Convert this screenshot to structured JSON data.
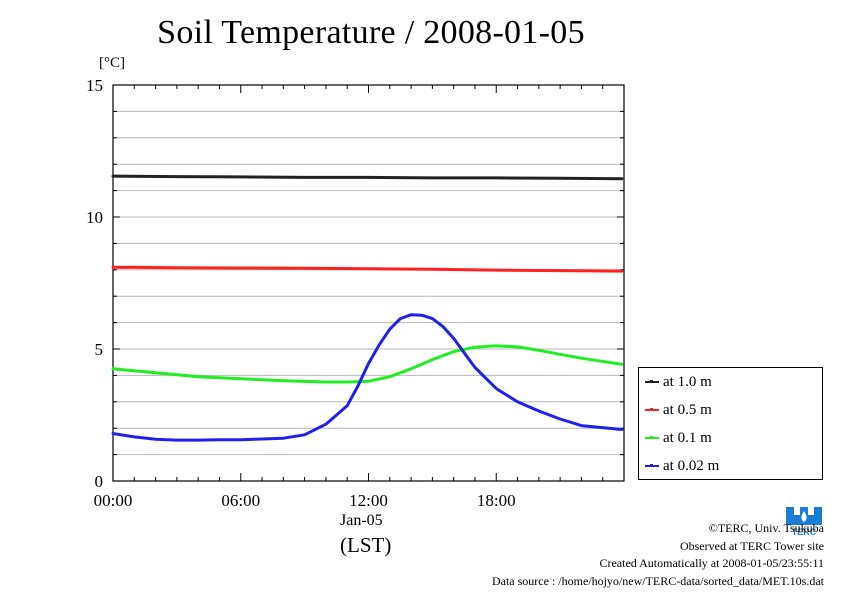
{
  "chart_data": {
    "type": "line",
    "title": "Soil Temperature / 2008-01-05",
    "ylabel": "[°C]",
    "ylim": [
      0,
      15
    ],
    "yticks": [
      0,
      5,
      10,
      15
    ],
    "xlim": [
      0,
      24
    ],
    "xticks": [
      {
        "value": 0,
        "label": "00:00"
      },
      {
        "value": 6,
        "label": "06:00"
      },
      {
        "value": 12,
        "label": "12:00"
      },
      {
        "value": 18,
        "label": "18:00"
      }
    ],
    "date_label": "Jan-05",
    "xlabel": "(LST)",
    "grid": true,
    "legend_position": "right",
    "series": [
      {
        "name": "at 1.0 m",
        "color": "#222222",
        "x": [
          0,
          3,
          6,
          9,
          12,
          15,
          18,
          21,
          23.9
        ],
        "y": [
          11.55,
          11.53,
          11.52,
          11.5,
          11.5,
          11.48,
          11.48,
          11.47,
          11.45
        ]
      },
      {
        "name": "at 0.5 m",
        "color": "#ff2020",
        "x": [
          0,
          3,
          6,
          9,
          12,
          15,
          18,
          21,
          23.9
        ],
        "y": [
          8.1,
          8.08,
          8.07,
          8.06,
          8.04,
          8.02,
          7.99,
          7.97,
          7.95
        ]
      },
      {
        "name": "at 0.1 m",
        "color": "#20ee20",
        "x": [
          0,
          2,
          4,
          6,
          8,
          10,
          11,
          12,
          13,
          14,
          15,
          16,
          17,
          18,
          19,
          20,
          21,
          22,
          23.9
        ],
        "y": [
          4.25,
          4.1,
          3.95,
          3.87,
          3.8,
          3.75,
          3.75,
          3.78,
          3.95,
          4.25,
          4.6,
          4.9,
          5.07,
          5.12,
          5.08,
          4.95,
          4.8,
          4.65,
          4.42
        ]
      },
      {
        "name": "at 0.02 m",
        "color": "#2020ee",
        "x": [
          0,
          1,
          2,
          3,
          4,
          5,
          6,
          7,
          8,
          9,
          10,
          11,
          11.5,
          12,
          12.5,
          13,
          13.5,
          14,
          14.5,
          15,
          15.5,
          16,
          16.5,
          17,
          18,
          19,
          20,
          21,
          22,
          23.9
        ],
        "y": [
          1.8,
          1.67,
          1.58,
          1.55,
          1.55,
          1.56,
          1.56,
          1.59,
          1.62,
          1.75,
          2.15,
          2.85,
          3.6,
          4.45,
          5.15,
          5.75,
          6.15,
          6.3,
          6.28,
          6.15,
          5.85,
          5.4,
          4.85,
          4.3,
          3.5,
          3.0,
          2.65,
          2.35,
          2.1,
          1.95
        ]
      }
    ]
  },
  "credits": {
    "copyright": "©TERC, Univ. Tsukuba",
    "observed": "Observed at TERC Tower site",
    "created": "Created Automatically at 2008-01-05/23:55:11",
    "source": "Data source : /home/hojyo/new/TERC-data/sorted_data/MET.10s.dat"
  },
  "logo": {
    "text": "TERC",
    "color": "#1a7fd4"
  }
}
